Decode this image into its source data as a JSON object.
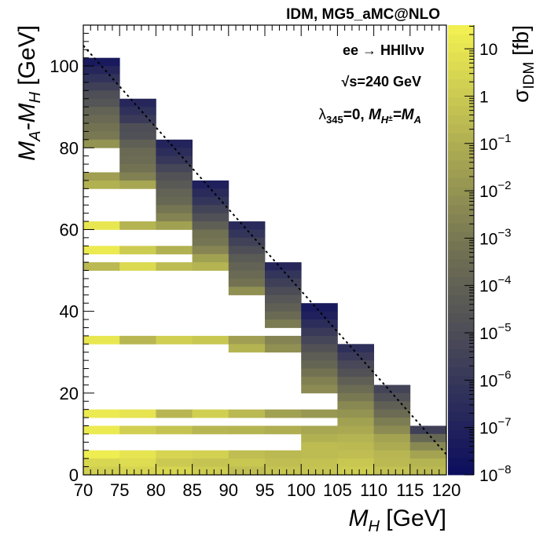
{
  "chart_data": {
    "type": "heatmap",
    "title": "IDM, MG5_aMC@NLO",
    "xlabel": {
      "main": "M",
      "sub": "H",
      "unit": " [GeV]"
    },
    "ylabel": {
      "part1": "M",
      "sub1": "A",
      "dash": "-M",
      "sub2": "H",
      "unit": " [GeV]"
    },
    "colorbar_label": {
      "main": "σ",
      "sub": "IDM",
      "unit": " [fb]"
    },
    "annotations": {
      "process": "ee → HHllνν",
      "sqrt_s": {
        "root": "√",
        "text": "s=240 GeV"
      },
      "couplings": {
        "lambda": "λ",
        "lambda_sub": "345",
        "eq": "=0,  ",
        "m": "M",
        "m_sub": "H",
        "m_sup": "±",
        "eq2": "=M",
        "a_sub": "A"
      }
    },
    "x_range": [
      70,
      120
    ],
    "y_range": [
      0,
      110
    ],
    "x_ticks": [
      "70",
      "75",
      "80",
      "85",
      "90",
      "95",
      "100",
      "105",
      "110",
      "115",
      "120"
    ],
    "y_ticks": [
      "0",
      "20",
      "40",
      "60",
      "80",
      "100"
    ],
    "x_bin_edges": [
      70,
      75,
      80,
      85,
      90,
      95,
      100,
      105,
      110,
      115,
      120
    ],
    "y_bin_width": 2,
    "column_top": [
      102,
      92,
      82,
      72,
      62,
      52,
      42,
      32,
      22,
      12
    ],
    "empty_bins": [
      [
        6,
        8,
        12,
        16,
        18,
        20,
        22,
        24,
        26,
        28,
        30,
        34,
        36,
        38,
        40,
        42,
        44,
        46,
        48,
        52,
        56,
        58,
        62,
        64,
        66,
        68,
        74,
        76,
        78
      ],
      [
        6,
        8,
        12,
        16,
        18,
        20,
        22,
        24,
        26,
        28,
        30,
        34,
        36,
        38,
        40,
        42,
        44,
        46,
        48,
        52,
        56,
        58,
        62,
        64,
        66,
        68
      ],
      [
        6,
        8,
        12,
        16,
        18,
        20,
        22,
        24,
        26,
        28,
        30,
        34,
        36,
        38,
        40,
        42,
        44,
        46,
        48,
        52,
        56,
        58
      ],
      [
        6,
        8,
        12,
        16,
        18,
        20,
        22,
        24,
        26,
        28,
        30,
        34,
        36,
        38,
        40,
        42,
        44,
        46,
        48
      ],
      [
        6,
        8,
        12,
        16,
        18,
        20,
        22,
        24,
        26,
        28,
        34,
        36,
        38,
        40,
        42
      ],
      [
        6,
        8,
        12,
        16,
        18,
        20,
        22,
        24,
        26,
        28,
        34
      ],
      [
        12,
        16,
        18
      ],
      [],
      [],
      []
    ],
    "log10_sigma_fb": [
      [
        0.4,
        0.2,
        0.5,
        1.3,
        1.2,
        1.2,
        1.1,
        -0.6,
        1.2,
        1.1,
        -0.9,
        -1.6,
        -2.0,
        -3.0,
        -3.2,
        -3.6,
        -3.9,
        -4.6,
        -4.9,
        -5.6,
        -6.2,
        -6.8,
        -7.4
      ],
      [
        0.3,
        0.0,
        0.4,
        0.7,
        1.0,
        0.2,
        1.0,
        -0.7,
        0.6,
        0.1,
        -0.8,
        -1.3,
        -2.7,
        -3.2,
        -3.5,
        -3.6,
        -4.1,
        -4.8,
        -4.9,
        -5.8,
        -6.3,
        -6.8
      ],
      [
        0.5,
        0.2,
        0.5,
        0.4,
        0.0,
        0.4,
        -0.2,
        -0.7,
        0.2,
        -0.5,
        -0.9,
        -1.5,
        -2.6,
        -3.1,
        -3.7,
        -3.9,
        -4.4,
        -4.7,
        -5.3,
        -6.0,
        -6.5,
        -6.9
      ],
      [
        0.4,
        0.3,
        0.6,
        0.3,
        0.1,
        -0.2,
        0.3,
        -0.7,
        0.2,
        -0.1,
        -0.8,
        -1.5,
        -2.5,
        -3.1,
        -3.3,
        -4.1,
        -4.8,
        -5.4,
        -6.1,
        -6.6,
        -7.1
      ],
      [
        0.0,
        0.3,
        0.4,
        0.0,
        -0.2,
        -0.4,
        -0.1,
        -0.4,
        -0.8,
        -0.6,
        -0.8,
        -1.6,
        -2.1,
        -3.2,
        -3.6,
        -3.9,
        -4.3,
        -4.9,
        -5.5,
        -6.1,
        -6.6
      ],
      [
        0.1,
        0.4,
        0.2,
        0.0,
        -0.1,
        -0.3,
        -0.2,
        -0.4,
        -0.6,
        -1.0,
        -1.5,
        -2.1,
        -2.6,
        -2.9,
        -3.6,
        -4.1,
        -4.5,
        -5.0,
        -5.6,
        -6.1,
        -6.8
      ],
      [
        0.3,
        0.2,
        0.1,
        -0.2,
        -0.3,
        -0.5,
        -0.5,
        -0.9,
        -1.3,
        -1.8,
        -2.3,
        -2.7,
        -3.2,
        -3.8,
        -4.2,
        -4.7,
        -5.3,
        -5.9,
        -6.5,
        -7.1,
        -7.4
      ],
      [
        0.1,
        -0.1,
        -0.4,
        -0.6,
        -0.8,
        -1.2,
        -1.5,
        -2.0,
        -2.4,
        -3.0,
        -3.5,
        -4.1,
        -4.7,
        -5.2,
        -5.8,
        -6.4
      ],
      [
        -0.3,
        -0.6,
        -0.7,
        -1.1,
        -1.4,
        -2.3,
        -2.8,
        -3.5,
        -4.1,
        -4.8,
        -5.4
      ],
      [
        -0.6,
        -0.8,
        -1.4,
        -2.4,
        -3.7,
        -5.6
      ]
    ],
    "colorbar": {
      "log10_range": [
        -8,
        1.5
      ],
      "tick_labels": [
        {
          "base": "10",
          "exp": "",
          "value": 1
        },
        {
          "base": "1",
          "exp": "",
          "value": 0
        },
        {
          "base": "10",
          "exp": "−1",
          "value": -1
        },
        {
          "base": "10",
          "exp": "−2",
          "value": -2
        },
        {
          "base": "10",
          "exp": "−3",
          "value": -3
        },
        {
          "base": "10",
          "exp": "−4",
          "value": -4
        },
        {
          "base": "10",
          "exp": "−5",
          "value": -5
        },
        {
          "base": "10",
          "exp": "−6",
          "value": -6
        },
        {
          "base": "10",
          "exp": "−7",
          "value": -7
        },
        {
          "base": "10",
          "exp": "−8",
          "value": -8
        }
      ],
      "low_color": "#0c0d5e",
      "mid_color": "#717153",
      "high_color": "#f4f251"
    },
    "kinematic_limit_line": {
      "from": [
        70,
        105
      ],
      "to": [
        120,
        5
      ],
      "style": "dashed"
    }
  }
}
